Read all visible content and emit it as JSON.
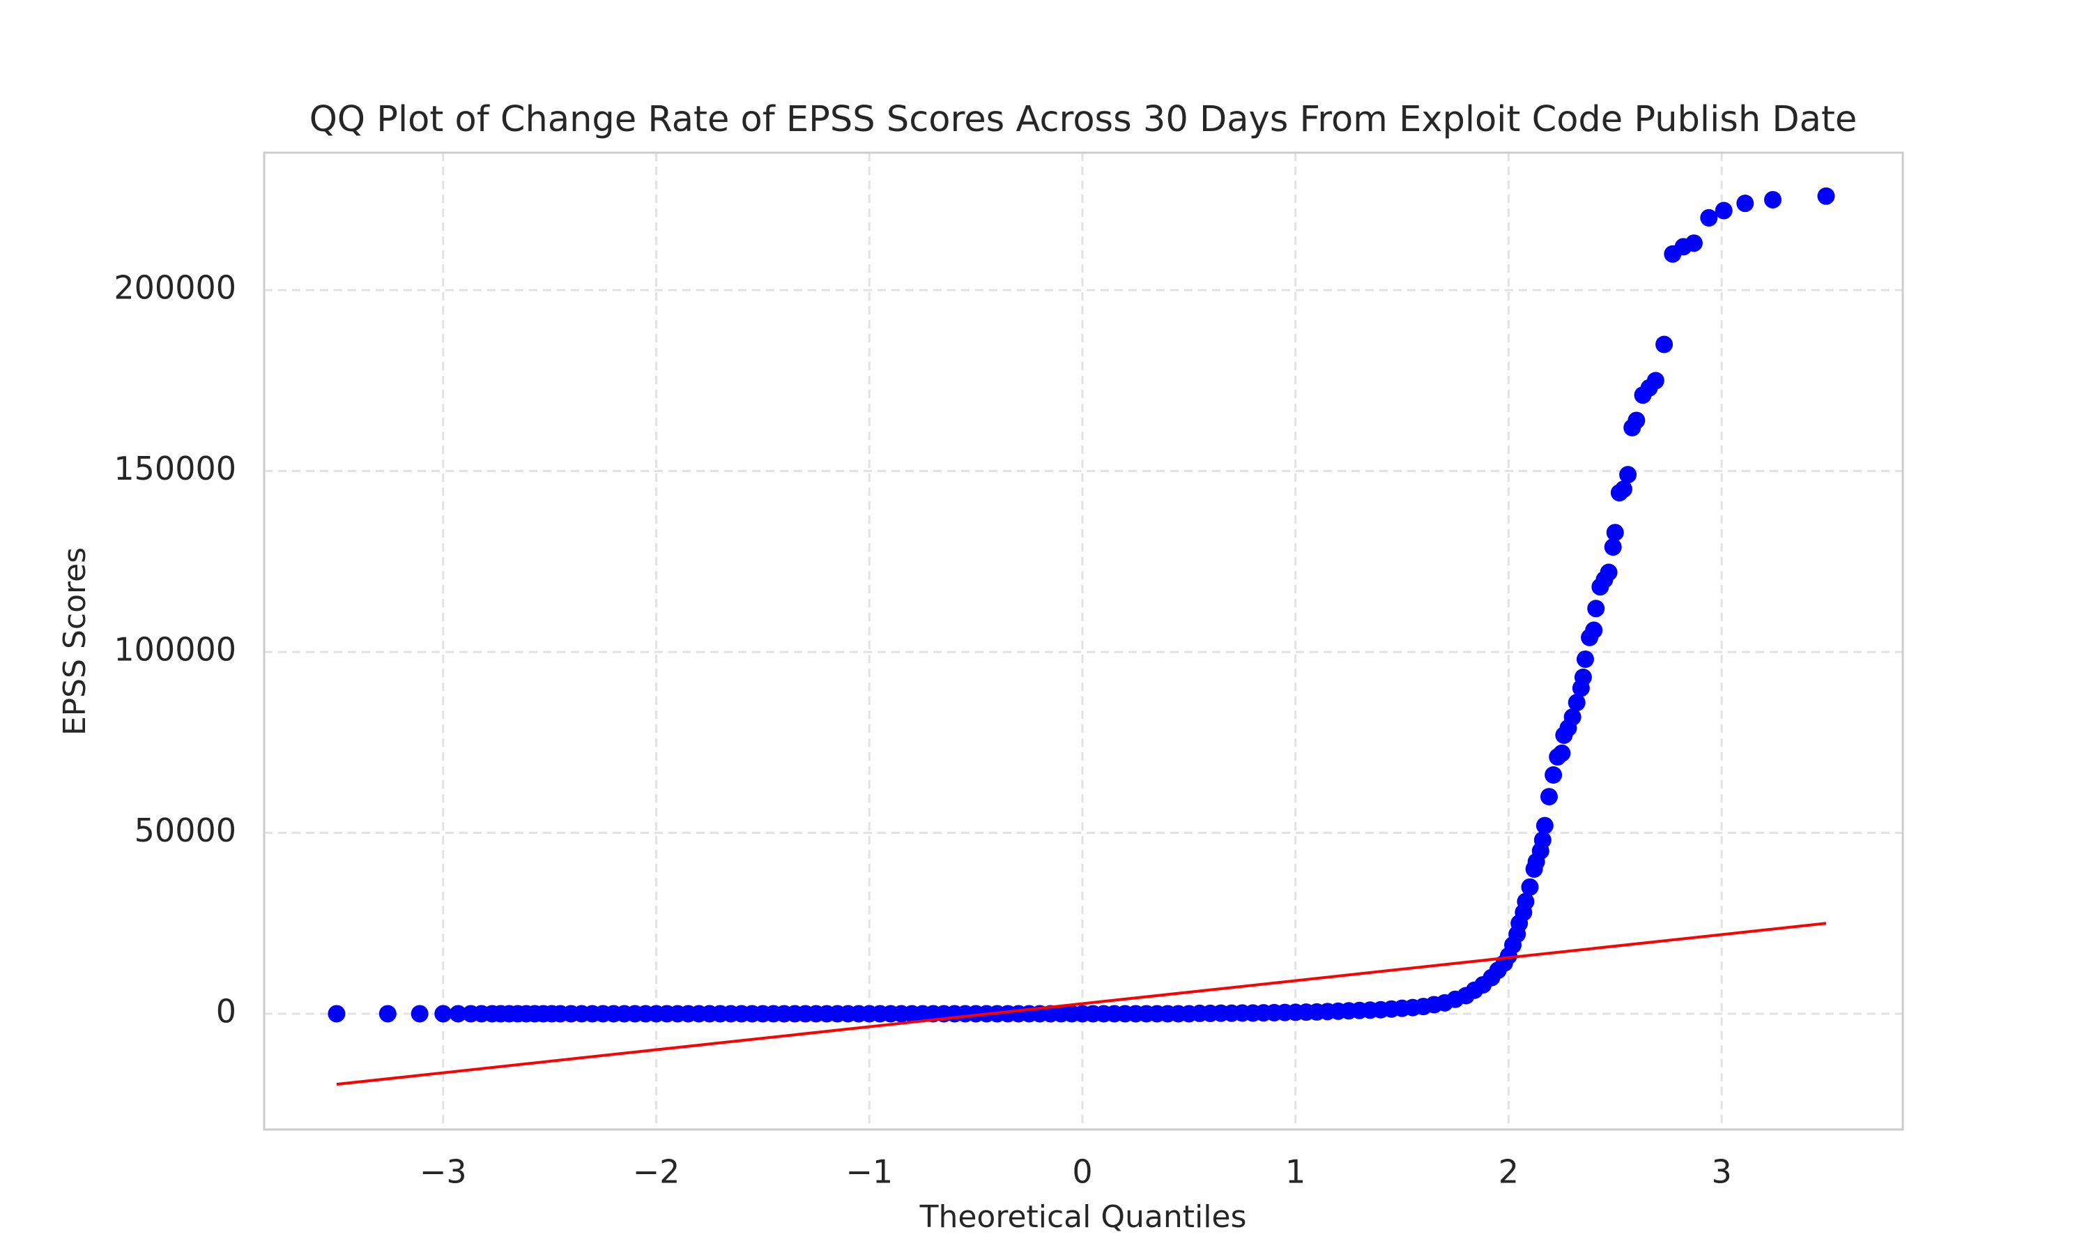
{
  "chart_data": {
    "type": "scatter",
    "title": "QQ Plot of Change Rate of EPSS Scores Across 30 Days From Exploit Code Publish Date",
    "x_label": "Theoretical Quantiles",
    "y_label": "EPSS Scores",
    "xlim": [
      -3.84,
      3.85
    ],
    "ylim": [
      -32000,
      238000
    ],
    "xticks": [
      {
        "value": -3,
        "label": "−3"
      },
      {
        "value": -2,
        "label": "−2"
      },
      {
        "value": -1,
        "label": "−1"
      },
      0,
      1,
      2,
      3
    ],
    "yticks": [
      0,
      50000,
      100000,
      150000,
      200000
    ],
    "grid": true,
    "color": "#0000ff",
    "x": [
      -3.5,
      -3.26,
      -3.11,
      -3.0,
      -2.93,
      -2.87,
      -2.82,
      -2.77,
      -2.73,
      -2.69,
      -2.65,
      -2.61,
      -2.57,
      -2.53,
      -2.49,
      -2.45,
      -2.4,
      -2.35,
      -2.3,
      -2.25,
      -2.2,
      -2.15,
      -2.1,
      -2.05,
      -2.0,
      -1.95,
      -1.9,
      -1.85,
      -1.8,
      -1.75,
      -1.7,
      -1.65,
      -1.6,
      -1.55,
      -1.5,
      -1.45,
      -1.4,
      -1.35,
      -1.3,
      -1.25,
      -1.2,
      -1.15,
      -1.1,
      -1.05,
      -1.0,
      -0.95,
      -0.9,
      -0.85,
      -0.8,
      -0.75,
      -0.7,
      -0.65,
      -0.6,
      -0.55,
      -0.5,
      -0.45,
      -0.4,
      -0.35,
      -0.3,
      -0.25,
      -0.2,
      -0.15,
      -0.1,
      -0.05,
      0,
      0.05,
      0.1,
      0.15,
      0.2,
      0.25,
      0.3,
      0.35,
      0.4,
      0.45,
      0.5,
      0.55,
      0.6,
      0.65,
      0.7,
      0.75,
      0.8,
      0.85,
      0.9,
      0.95,
      1.0,
      1.05,
      1.1,
      1.15,
      1.2,
      1.25,
      1.3,
      1.35,
      1.4,
      1.45,
      1.5,
      1.55,
      1.6,
      1.65,
      1.7,
      1.75,
      1.8,
      1.84,
      1.88,
      1.92,
      1.95,
      1.98,
      2.0,
      2.02,
      2.04,
      2.05,
      2.07,
      2.08,
      2.1,
      2.12,
      2.13,
      2.15,
      2.16,
      2.17,
      2.19,
      2.21,
      2.23,
      2.25,
      2.26,
      2.28,
      2.3,
      2.32,
      2.34,
      2.35,
      2.36,
      2.38,
      2.4,
      2.41,
      2.43,
      2.45,
      2.47,
      2.49,
      2.5,
      2.52,
      2.54,
      2.56,
      2.58,
      2.6,
      2.63,
      2.66,
      2.69,
      2.73,
      2.77,
      2.82,
      2.87,
      2.94,
      3.01,
      3.11,
      3.24,
      3.49
    ],
    "values": [
      0,
      0,
      0,
      0,
      0,
      0,
      0,
      0,
      0,
      0,
      0,
      0,
      0,
      0,
      0,
      0,
      0,
      0,
      0,
      0,
      0,
      0,
      0,
      0,
      0,
      0,
      0,
      0,
      0,
      0,
      0,
      0,
      0,
      0,
      0,
      0,
      0,
      0,
      0,
      0,
      0,
      0,
      0,
      0,
      0,
      0,
      0,
      0,
      0,
      0,
      0,
      0,
      0,
      0,
      0,
      0,
      0,
      0,
      0,
      0,
      0,
      0,
      0,
      0,
      0,
      0,
      0,
      0,
      0,
      0,
      0,
      0,
      0,
      0,
      0,
      100,
      100,
      150,
      150,
      200,
      200,
      250,
      300,
      350,
      400,
      450,
      500,
      600,
      700,
      800,
      900,
      1000,
      1100,
      1300,
      1500,
      1700,
      2000,
      2500,
      3000,
      4000,
      5000,
      6500,
      8000,
      10000,
      12000,
      14000,
      16000,
      19000,
      22000,
      25000,
      28000,
      31000,
      35000,
      40000,
      42000,
      45000,
      48000,
      52000,
      60000,
      66000,
      71000,
      72000,
      77000,
      79000,
      82000,
      86000,
      90000,
      93000,
      98000,
      104000,
      106000,
      112000,
      118000,
      120000,
      122000,
      129000,
      133000,
      144000,
      145000,
      149000,
      162000,
      164000,
      171000,
      173000,
      175000,
      185000,
      210000,
      212000,
      213000,
      220000,
      222000,
      224000,
      225000,
      226000
    ],
    "fit_line": {
      "color": "#ff0000",
      "x": [
        -3.5,
        3.49
      ],
      "values": [
        -19500,
        25000
      ]
    }
  }
}
